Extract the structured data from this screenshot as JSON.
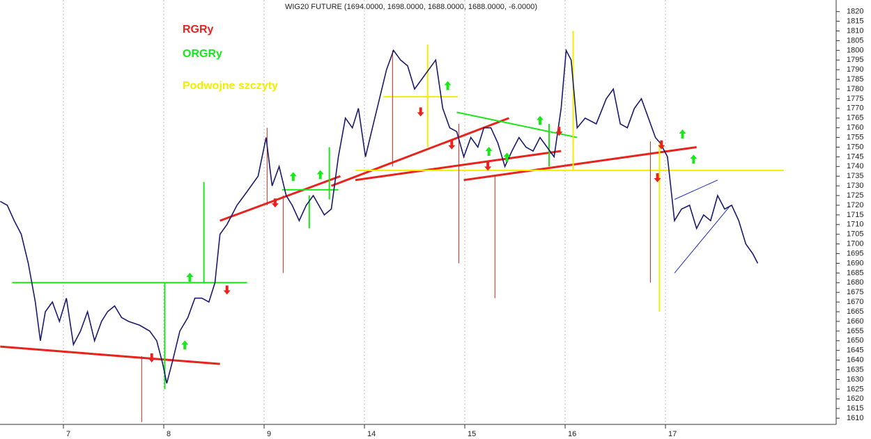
{
  "chart_data": {
    "type": "line",
    "title": "WIG20 FUTURE (1694.0000, 1698.0000, 1688.0000, 1688.0000, -6.0000)",
    "annotations": [
      {
        "text": "RGRy",
        "color": "#e8231c"
      },
      {
        "text": "ORGRy",
        "color": "#18e818"
      },
      {
        "text": "Podwojne szczyty",
        "color": "#f2ee00"
      }
    ],
    "color": "#1a1a6e",
    "x": [
      -0.63,
      -0.56,
      -0.49,
      -0.42,
      -0.35,
      -0.28,
      -0.23,
      -0.18,
      -0.11,
      -0.04,
      0.03,
      0.1,
      0.17,
      0.24,
      0.31,
      0.38,
      0.44,
      0.51,
      0.58,
      0.65,
      0.76,
      0.86,
      0.93,
      0.99,
      1.03,
      1.09,
      1.16,
      1.24,
      1.31,
      1.38,
      1.45,
      1.51,
      1.56,
      1.63,
      1.73,
      1.83,
      1.94,
      2.02,
      2.08,
      2.15,
      2.22,
      2.28,
      2.35,
      2.42,
      2.49,
      2.6,
      2.67,
      2.74,
      2.81,
      2.88,
      2.94,
      3.01,
      3.08,
      3.15,
      3.22,
      3.29,
      3.36,
      3.43,
      3.5,
      3.57,
      3.64,
      3.71,
      3.78,
      3.85,
      3.92,
      3.99,
      4.06,
      4.13,
      4.19,
      4.26,
      4.33,
      4.4,
      4.47,
      4.54,
      4.61,
      4.68,
      4.75,
      4.82,
      4.89,
      4.96,
      5.01,
      5.06,
      5.12,
      5.2,
      5.31,
      5.41,
      5.48,
      5.55,
      5.62,
      5.69,
      5.76,
      5.83,
      5.9,
      5.95,
      6.02,
      6.09,
      6.16,
      6.24,
      6.31,
      6.38,
      6.45,
      6.52,
      6.59,
      6.66,
      6.73,
      6.8,
      6.87,
      6.92
    ],
    "values": [
      1722,
      1720,
      1712,
      1705,
      1690,
      1670,
      1650,
      1665,
      1670,
      1660,
      1672,
      1648,
      1655,
      1665,
      1650,
      1660,
      1665,
      1668,
      1662,
      1660,
      1658,
      1655,
      1650,
      1638,
      1628,
      1640,
      1655,
      1662,
      1672,
      1672,
      1670,
      1680,
      1705,
      1710,
      1720,
      1727,
      1735,
      1755,
      1730,
      1740,
      1725,
      1720,
      1712,
      1720,
      1725,
      1715,
      1718,
      1745,
      1765,
      1760,
      1770,
      1745,
      1760,
      1775,
      1790,
      1800,
      1795,
      1792,
      1780,
      1785,
      1790,
      1795,
      1770,
      1760,
      1758,
      1745,
      1755,
      1750,
      1760,
      1760,
      1752,
      1740,
      1748,
      1755,
      1750,
      1748,
      1755,
      1750,
      1745,
      1770,
      1800,
      1795,
      1760,
      1765,
      1762,
      1775,
      1780,
      1762,
      1760,
      1770,
      1775,
      1765,
      1755,
      1752,
      1745,
      1712,
      1718,
      1720,
      1708,
      1715,
      1712,
      1725,
      1718,
      1720,
      1712,
      1700,
      1695,
      1690
    ],
    "xlim": [
      -0.632,
      7.701
    ],
    "ylim": [
      1606.8,
      1826
    ],
    "xticks": [
      {
        "value": 0,
        "label": "7"
      },
      {
        "value": 1,
        "label": "8"
      },
      {
        "value": 2,
        "label": "9"
      },
      {
        "value": 3,
        "label": "14"
      },
      {
        "value": 4,
        "label": "15"
      },
      {
        "value": 5,
        "label": "16"
      },
      {
        "value": 6,
        "label": "17"
      }
    ],
    "yticks": [
      1610,
      1615,
      1620,
      1625,
      1630,
      1635,
      1640,
      1645,
      1650,
      1655,
      1660,
      1665,
      1670,
      1675,
      1680,
      1685,
      1690,
      1695,
      1700,
      1705,
      1710,
      1715,
      1720,
      1725,
      1730,
      1735,
      1740,
      1745,
      1750,
      1755,
      1760,
      1765,
      1770,
      1775,
      1780,
      1785,
      1790,
      1795,
      1800,
      1805,
      1810,
      1815,
      1820
    ],
    "trendlines": [
      {
        "color": "#e8231c",
        "x": [
          -0.63,
          1.56
        ],
        "y": [
          1647,
          1638
        ]
      },
      {
        "color": "#e8231c",
        "x": [
          1.56,
          2.76
        ],
        "y": [
          1712,
          1735
        ]
      },
      {
        "color": "#e8231c",
        "x": [
          2.67,
          4.44
        ],
        "y": [
          1730,
          1765
        ]
      },
      {
        "color": "#e8231c",
        "x": [
          2.91,
          4.96
        ],
        "y": [
          1733,
          1748
        ]
      },
      {
        "color": "#e8231c",
        "x": [
          3.99,
          6.31
        ],
        "y": [
          1733,
          1750
        ]
      },
      {
        "color": "#18e818",
        "x": [
          -0.51,
          1.83
        ],
        "y": [
          1680,
          1680
        ]
      },
      {
        "color": "#18e818",
        "x": [
          2.18,
          2.74
        ],
        "y": [
          1728,
          1728
        ]
      },
      {
        "color": "#18e818",
        "x": [
          3.92,
          5.12
        ],
        "y": [
          1768,
          1755
        ]
      },
      {
        "color": "#f2ee00",
        "x": [
          2.91,
          7.18
        ],
        "y": [
          1738,
          1738
        ]
      },
      {
        "color": "#f2ee00",
        "x": [
          3.19,
          3.93
        ],
        "y": [
          1776,
          1776
        ]
      },
      {
        "color": "#1c2bd0",
        "x": [
          6.09,
          6.65
        ],
        "y": [
          1685,
          1720
        ]
      },
      {
        "color": "#1c2bd0",
        "x": [
          6.09,
          6.52
        ],
        "y": [
          1723,
          1733
        ]
      }
    ],
    "verticals": [
      {
        "color": "#18e818",
        "x": 1.4,
        "y": [
          1732,
          1680
        ]
      },
      {
        "color": "#18e818",
        "x": 1.01,
        "y": [
          1680,
          1625
        ]
      },
      {
        "color": "#18e818",
        "x": 2.65,
        "y": [
          1750,
          1723
        ]
      },
      {
        "color": "#18e818",
        "x": 2.45,
        "y": [
          1725,
          1708
        ]
      },
      {
        "color": "#18e818",
        "x": 4.84,
        "y": [
          1762,
          1740
        ]
      },
      {
        "color": "#f2ee00",
        "x": 3.63,
        "y": [
          1803,
          1750
        ]
      },
      {
        "color": "#f2ee00",
        "x": 5.08,
        "y": [
          1810,
          1738
        ]
      },
      {
        "color": "#f2ee00",
        "x": 5.94,
        "y": [
          1752,
          1665
        ]
      },
      {
        "color": "#c8281c",
        "x": 0.78,
        "y": [
          1642,
          1608
        ]
      },
      {
        "color": "#c8281c",
        "x": 2.19,
        "y": [
          1725,
          1685
        ]
      },
      {
        "color": "#c8281c",
        "x": 2.03,
        "y": [
          1760,
          1720
        ]
      },
      {
        "color": "#c8281c",
        "x": 3.28,
        "y": [
          1800,
          1740
        ]
      },
      {
        "color": "#c8281c",
        "x": 3.94,
        "y": [
          1762,
          1690
        ]
      },
      {
        "color": "#c8281c",
        "x": 4.3,
        "y": [
          1735,
          1672
        ]
      },
      {
        "color": "#c8281c",
        "x": 5.85,
        "y": [
          1753,
          1680
        ]
      }
    ],
    "signals": [
      {
        "direction": "down",
        "color": "#e8231c",
        "x": 0.88,
        "y": 1641
      },
      {
        "direction": "up",
        "color": "#18e818",
        "x": 1.21,
        "y": 1648
      },
      {
        "direction": "up",
        "color": "#18e818",
        "x": 1.26,
        "y": 1683
      },
      {
        "direction": "down",
        "color": "#e8231c",
        "x": 1.63,
        "y": 1676
      },
      {
        "direction": "down",
        "color": "#e8231c",
        "x": 2.11,
        "y": 1721
      },
      {
        "direction": "up",
        "color": "#18e818",
        "x": 2.29,
        "y": 1735
      },
      {
        "direction": "up",
        "color": "#18e818",
        "x": 2.56,
        "y": 1736
      },
      {
        "direction": "down",
        "color": "#e8231c",
        "x": 3.56,
        "y": 1768
      },
      {
        "direction": "up",
        "color": "#18e818",
        "x": 3.83,
        "y": 1782
      },
      {
        "direction": "down",
        "color": "#e8231c",
        "x": 3.87,
        "y": 1751
      },
      {
        "direction": "up",
        "color": "#18e818",
        "x": 4.24,
        "y": 1748
      },
      {
        "direction": "down",
        "color": "#e8231c",
        "x": 4.23,
        "y": 1740
      },
      {
        "direction": "up",
        "color": "#18e818",
        "x": 4.42,
        "y": 1745
      },
      {
        "direction": "up",
        "color": "#18e818",
        "x": 4.75,
        "y": 1764
      },
      {
        "direction": "down",
        "color": "#e8231c",
        "x": 4.94,
        "y": 1758
      },
      {
        "direction": "down",
        "color": "#e8231c",
        "x": 5.96,
        "y": 1751
      },
      {
        "direction": "up",
        "color": "#18e818",
        "x": 6.17,
        "y": 1757
      },
      {
        "direction": "up",
        "color": "#18e818",
        "x": 6.28,
        "y": 1744
      },
      {
        "direction": "down",
        "color": "#e8231c",
        "x": 5.92,
        "y": 1734
      }
    ],
    "grid": true
  }
}
